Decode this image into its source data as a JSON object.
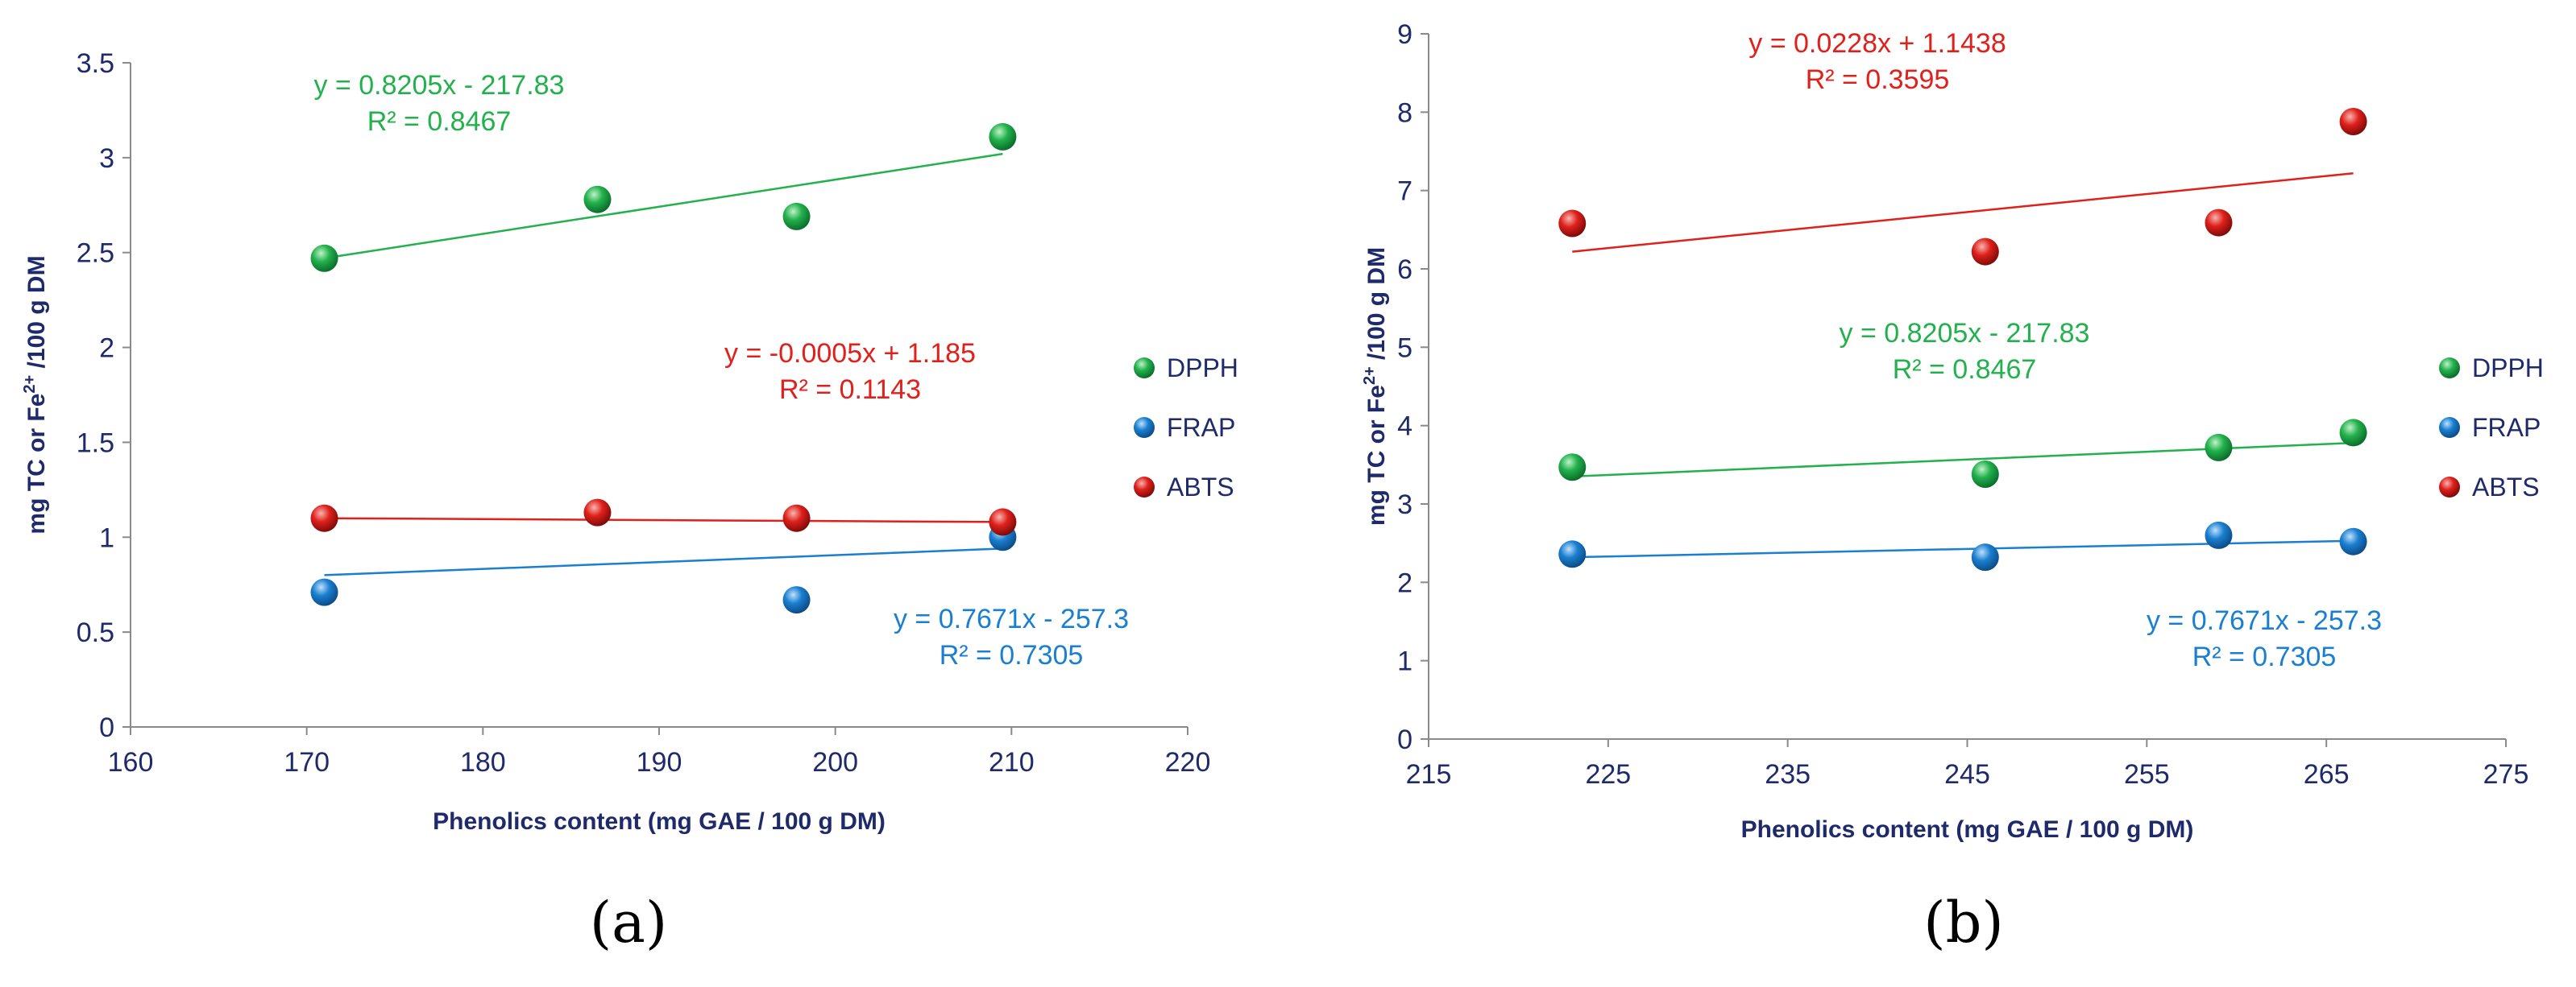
{
  "chart_data": [
    {
      "type": "scatter",
      "panel_label": "(a)",
      "xlabel": "Phenolics content (mg GAE / 100 g DM)",
      "ylabel": "mg TC or Fe",
      "ylabel_sup": "2+",
      "ylabel_tail": " /100 g DM",
      "xlim": [
        160,
        220
      ],
      "ylim": [
        0,
        3.5
      ],
      "xticks": [
        "160",
        "170",
        "180",
        "190",
        "200",
        "210",
        "220"
      ],
      "yticks": [
        "0",
        "0.5",
        "1",
        "1.5",
        "2",
        "2.5",
        "3",
        "3.5"
      ],
      "series": [
        {
          "name": "DPPH",
          "color": "#22b14c",
          "dark": "#0a6b2a",
          "light": "#bff2c8",
          "x": [
            171,
            186.5,
            197.8,
            209.5
          ],
          "y": [
            2.47,
            2.78,
            2.69,
            3.11
          ],
          "trendline": {
            "x": [
              171,
              209.5
            ],
            "y": [
              2.47,
              3.02
            ]
          },
          "equation": "y = 0.8205x - 217.83",
          "r2": "R² = 0.8467"
        },
        {
          "name": "FRAP",
          "color": "#1a7fd0",
          "dark": "#0b4a85",
          "light": "#bfe0fb",
          "x": [
            171,
            197.8,
            209.5
          ],
          "y": [
            0.71,
            0.67,
            1.0
          ],
          "trendline": {
            "x": [
              171,
              209.5
            ],
            "y": [
              0.8,
              0.94
            ]
          },
          "equation": "y = 0.7671x - 257.3",
          "r2": "R² = 0.7305"
        },
        {
          "name": "ABTS",
          "color": "#e0201b",
          "dark": "#7a0a08",
          "light": "#f7b5b0",
          "x": [
            171,
            186.5,
            197.8,
            209.5
          ],
          "y": [
            1.1,
            1.13,
            1.1,
            1.08
          ],
          "trendline": {
            "x": [
              171,
              209.5
            ],
            "y": [
              1.1,
              1.08
            ]
          },
          "equation": "y = -0.0005x + 1.185",
          "r2": "R² = 0.1143"
        }
      ]
    },
    {
      "type": "scatter",
      "panel_label": "(b)",
      "xlabel": "Phenolics content (mg GAE / 100 g DM)",
      "ylabel": "mg TC or Fe",
      "ylabel_sup": "2+",
      "ylabel_tail": " /100 g DM",
      "xlim": [
        215,
        275
      ],
      "ylim": [
        0,
        9
      ],
      "xticks": [
        "215",
        "225",
        "235",
        "245",
        "255",
        "265",
        "275"
      ],
      "yticks": [
        "0",
        "1",
        "2",
        "3",
        "4",
        "5",
        "6",
        "7",
        "8",
        "9"
      ],
      "series": [
        {
          "name": "DPPH",
          "color": "#22b14c",
          "dark": "#0a6b2a",
          "light": "#bff2c8",
          "x": [
            223,
            246,
            259,
            266.5
          ],
          "y": [
            3.47,
            3.38,
            3.72,
            3.91
          ],
          "trendline": {
            "x": [
              223,
              266.5
            ],
            "y": [
              3.35,
              3.78
            ]
          },
          "equation": "y = 0.8205x - 217.83",
          "r2": "R² = 0.8467"
        },
        {
          "name": "FRAP",
          "color": "#1a7fd0",
          "dark": "#0b4a85",
          "light": "#bfe0fb",
          "x": [
            223,
            246,
            259,
            266.5
          ],
          "y": [
            2.36,
            2.32,
            2.6,
            2.52
          ],
          "trendline": {
            "x": [
              223,
              266.5
            ],
            "y": [
              2.32,
              2.53
            ]
          },
          "equation": "y = 0.7671x - 257.3",
          "r2": "R² = 0.7305"
        },
        {
          "name": "ABTS",
          "color": "#e0201b",
          "dark": "#7a0a08",
          "light": "#f7b5b0",
          "x": [
            223,
            246,
            259,
            266.5
          ],
          "y": [
            6.58,
            6.22,
            6.59,
            7.88
          ],
          "trendline": {
            "x": [
              223,
              266.5
            ],
            "y": [
              6.22,
              7.22
            ]
          },
          "equation": "y = 0.0228x + 1.1438",
          "r2": "R² = 0.3595"
        }
      ]
    }
  ]
}
